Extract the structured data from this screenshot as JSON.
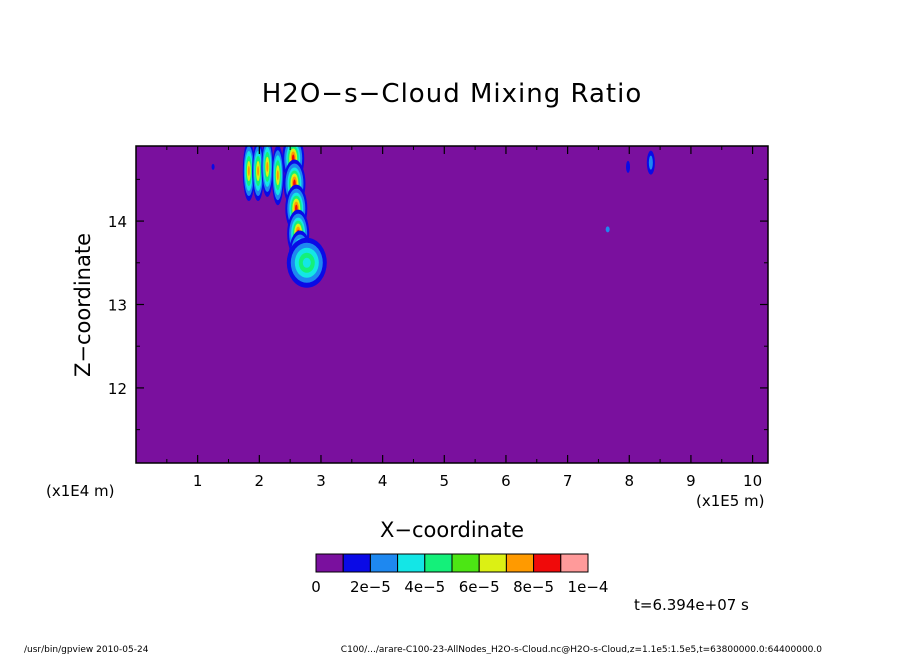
{
  "chart_data": {
    "type": "heatmap",
    "title": "H2O−s−Cloud Mixing Ratio",
    "xlabel": "X−coordinate",
    "ylabel": "Z−coordinate",
    "x_scale_note": "(x1E5 m)",
    "y_scale_note": "(x1E4 m)",
    "xlim": [
      0,
      10.25
    ],
    "ylim": [
      11.1,
      14.9
    ],
    "x_ticks": [
      1,
      2,
      3,
      4,
      5,
      6,
      7,
      8,
      9,
      10
    ],
    "x_tick_labels": [
      "1",
      "2",
      "3",
      "4",
      "5",
      "6",
      "7",
      "8",
      "9",
      "10"
    ],
    "y_ticks": [
      12,
      13,
      14
    ],
    "y_tick_labels": [
      "12",
      "13",
      "14"
    ],
    "background_color": "#7a109e",
    "colorbar": {
      "colors": [
        "#7a109e",
        "#0a0ae6",
        "#1e88f0",
        "#14e6e6",
        "#14f07a",
        "#4ce614",
        "#dcf014",
        "#ff9a00",
        "#f00a0a",
        "#ff9a9a"
      ],
      "labels": [
        "0",
        "2e−5",
        "4e−5",
        "6e−5",
        "8e−5",
        "1e−4"
      ],
      "min": 0,
      "max": 0.0001
    },
    "features": [
      {
        "x": 2.6,
        "z": 14.0,
        "max_value": 0.0001
      },
      {
        "x": 2.75,
        "z": 13.5,
        "max_value": 5e-05
      },
      {
        "x": 1.9,
        "z": 14.6,
        "max_value": 7e-05
      },
      {
        "x": 8.35,
        "z": 14.75,
        "max_value": 1e-05
      },
      {
        "x": 7.65,
        "z": 13.9,
        "max_value": 1e-05
      }
    ],
    "time_label": "t=6.394e+07 s"
  },
  "footer": {
    "left": "/usr/bin/gpview   2010-05-24",
    "right": "C100/.../arare-C100-23-AllNodes_H2O-s-Cloud.nc@H2O-s-Cloud,z=1.1e5:1.5e5,t=63800000.0:64400000.0"
  }
}
